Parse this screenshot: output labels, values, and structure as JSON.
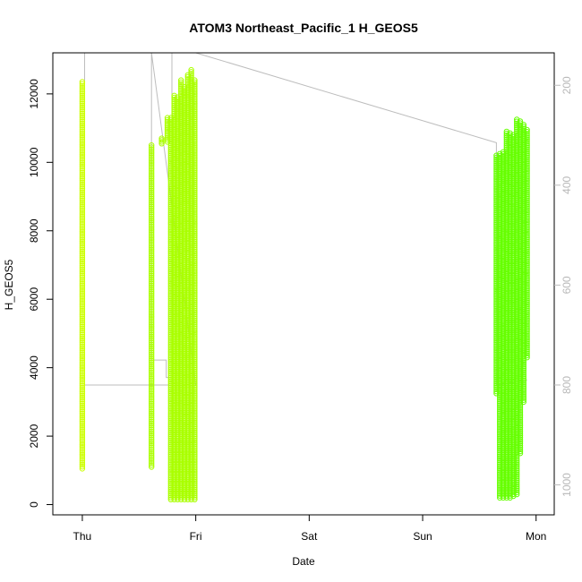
{
  "chart_data": {
    "type": "scatter",
    "title": "ATOM3 Northeast_Pacific_1 H_GEOS5",
    "xlabel": "Date",
    "ylabel": "H_GEOS5",
    "x_ticks": [
      "Thu",
      "Fri",
      "Sat",
      "Sun",
      "Mon"
    ],
    "x_tick_days": [
      0,
      1,
      2,
      3,
      4
    ],
    "xlim_days": [
      -0.26,
      4.16
    ],
    "ylim": [
      -300,
      13200
    ],
    "y_ticks": [
      0,
      2000,
      4000,
      6000,
      8000,
      10000,
      12000
    ],
    "y2_ticks": [
      200,
      400,
      600,
      800,
      1000
    ],
    "y2lim_reversed": [
      1060,
      135
    ],
    "grid": false,
    "legend": "none",
    "colors": {
      "segment_a": "#ccff00",
      "segment_b": "#aaff00",
      "segment_c": "#66ff00",
      "pressure_line": "#bdbdbd",
      "axis": "#000000"
    },
    "series": [
      {
        "color_key": "segment_a",
        "columns": [
          {
            "x": 0.0,
            "ymin": 1050,
            "ymax": 12350
          }
        ]
      },
      {
        "color_key": "segment_b",
        "columns": [
          {
            "x": 0.61,
            "ymin": 1100,
            "ymax": 10500
          },
          {
            "x": 0.7,
            "ymin": 10550,
            "ymax": 10700
          },
          {
            "x": 0.75,
            "ymin": 10600,
            "ymax": 11300
          },
          {
            "x": 0.78,
            "ymin": 150,
            "ymax": 11300
          },
          {
            "x": 0.81,
            "ymin": 150,
            "ymax": 11950
          },
          {
            "x": 0.84,
            "ymin": 150,
            "ymax": 11900
          },
          {
            "x": 0.87,
            "ymin": 150,
            "ymax": 12400
          },
          {
            "x": 0.9,
            "ymin": 150,
            "ymax": 12200
          },
          {
            "x": 0.93,
            "ymin": 150,
            "ymax": 12550
          },
          {
            "x": 0.96,
            "ymin": 150,
            "ymax": 12700
          },
          {
            "x": 0.99,
            "ymin": 150,
            "ymax": 12400
          }
        ]
      },
      {
        "color_key": "segment_c",
        "columns": [
          {
            "x": 3.65,
            "ymin": 3250,
            "ymax": 10200
          },
          {
            "x": 3.68,
            "ymin": 200,
            "ymax": 10250
          },
          {
            "x": 3.71,
            "ymin": 200,
            "ymax": 10300
          },
          {
            "x": 3.74,
            "ymin": 200,
            "ymax": 10900
          },
          {
            "x": 3.77,
            "ymin": 200,
            "ymax": 10850
          },
          {
            "x": 3.8,
            "ymin": 250,
            "ymax": 10800
          },
          {
            "x": 3.83,
            "ymin": 300,
            "ymax": 11250
          },
          {
            "x": 3.86,
            "ymin": 1500,
            "ymax": 11200
          },
          {
            "x": 3.89,
            "ymin": 3000,
            "ymax": 11100
          },
          {
            "x": 3.92,
            "ymin": 4300,
            "ymax": 10950
          }
        ]
      }
    ],
    "pressure_line": [
      [
        0.02,
        135
      ],
      [
        0.02,
        800
      ],
      [
        1.0,
        800
      ],
      [
        0.61,
        135
      ],
      [
        0.61,
        750
      ],
      [
        0.74,
        750
      ],
      [
        0.74,
        785
      ],
      [
        0.79,
        785
      ],
      [
        0.79,
        135
      ],
      [
        1.0,
        135
      ],
      [
        3.65,
        315
      ],
      [
        3.65,
        800
      ],
      [
        3.92,
        790
      ]
    ]
  }
}
